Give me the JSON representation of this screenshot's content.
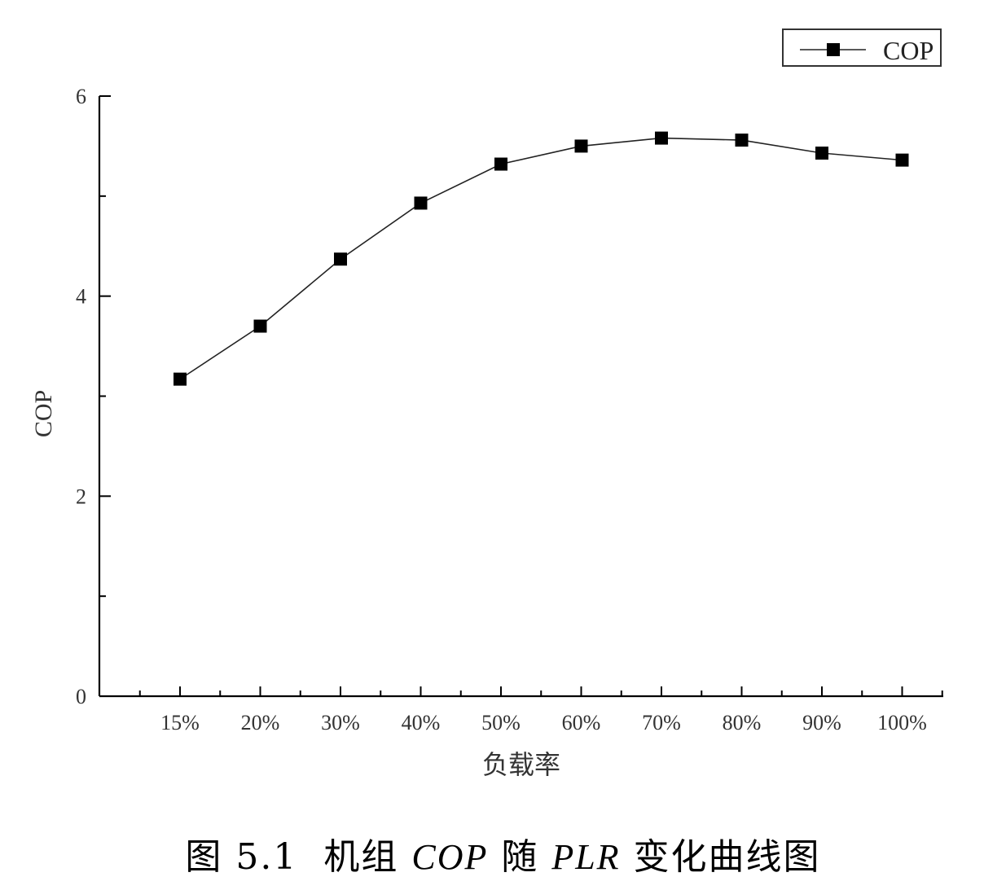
{
  "chart_data": {
    "type": "line",
    "categories": [
      "15%",
      "20%",
      "30%",
      "40%",
      "50%",
      "60%",
      "70%",
      "80%",
      "90%",
      "100%"
    ],
    "series": [
      {
        "name": "COP",
        "values": [
          3.17,
          3.7,
          4.37,
          4.93,
          5.32,
          5.5,
          5.58,
          5.56,
          5.43,
          5.36
        ]
      }
    ],
    "ylabel": "COP",
    "xlabel": "负载率",
    "ylim": [
      0,
      6
    ],
    "y_ticks": [
      0,
      2,
      4,
      6
    ],
    "grid": false,
    "legend_position": "top-right",
    "line_color": "#222222",
    "marker": "square"
  },
  "caption": {
    "prefix": "图 5.1  机组 ",
    "term1": "COP",
    "mid": " 随 ",
    "term2": "PLR",
    "suffix": " 变化曲线图"
  }
}
